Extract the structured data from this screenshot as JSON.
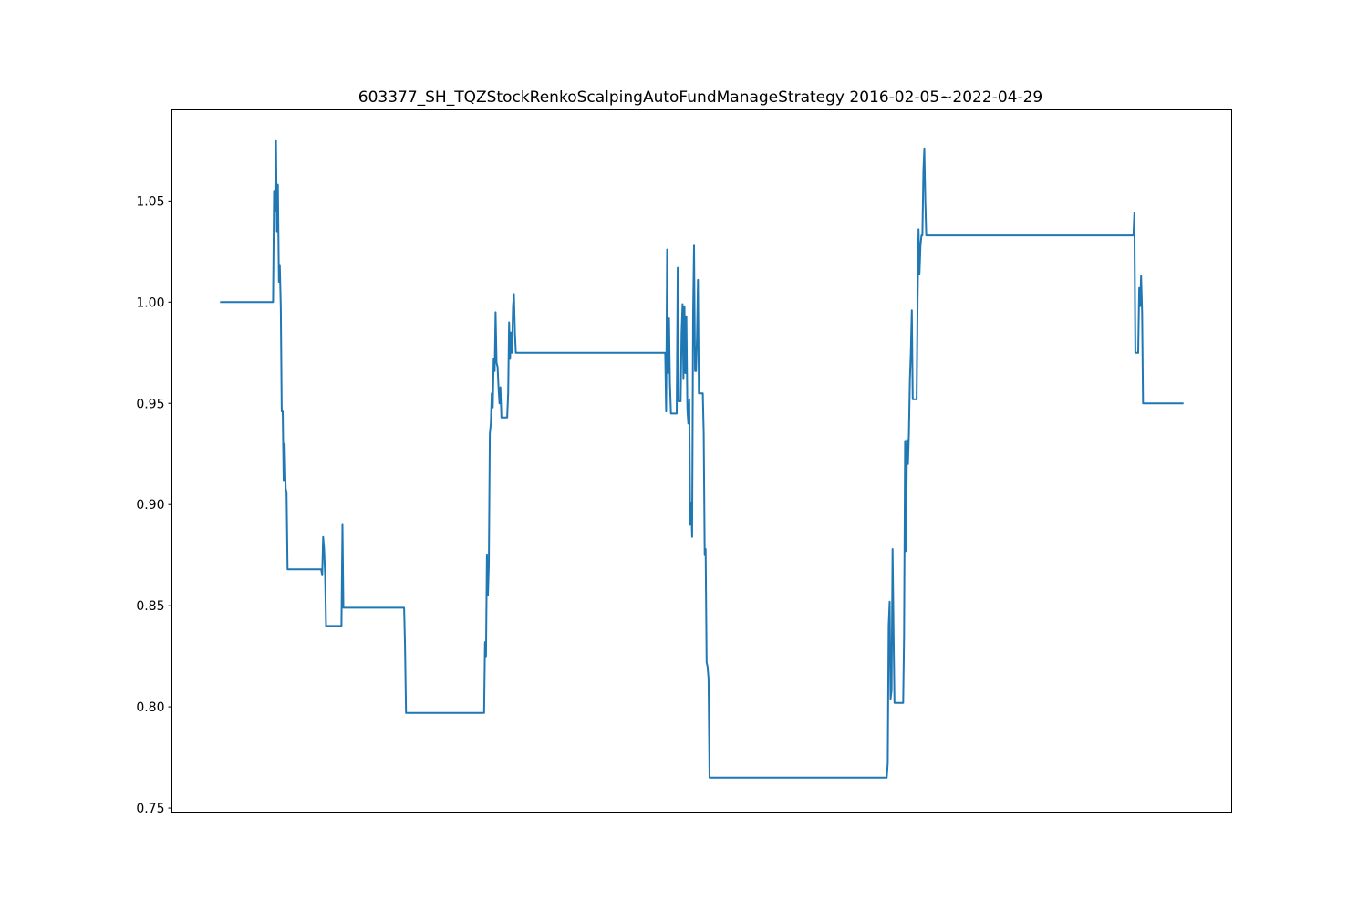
{
  "chart_data": {
    "type": "line",
    "title": "603377_SH_TQZStockRenkoScalpingAutoFundManageStrategy   2016-02-05~2022-04-29",
    "xlabel": "",
    "ylabel": "",
    "xlim": [
      -0.05,
      1.05
    ],
    "ylim": [
      0.748,
      1.095
    ],
    "yticks": [
      {
        "value": 0.75,
        "label": "0.75"
      },
      {
        "value": 0.8,
        "label": "0.80"
      },
      {
        "value": 0.85,
        "label": "0.85"
      },
      {
        "value": 0.9,
        "label": "0.90"
      },
      {
        "value": 0.95,
        "label": "0.95"
      },
      {
        "value": 1.0,
        "label": "1.00"
      },
      {
        "value": 1.05,
        "label": "1.05"
      }
    ],
    "grid": false,
    "line_color": "#1f77b4",
    "series": [
      {
        "values": [
          [
            0.0,
            1.0
          ],
          [
            0.055,
            1.0
          ],
          [
            0.056,
            1.055
          ],
          [
            0.057,
            1.045
          ],
          [
            0.058,
            1.08
          ],
          [
            0.059,
            1.035
          ],
          [
            0.06,
            1.058
          ],
          [
            0.061,
            1.01
          ],
          [
            0.062,
            1.018
          ],
          [
            0.063,
            0.997
          ],
          [
            0.064,
            0.946
          ],
          [
            0.065,
            0.946
          ],
          [
            0.066,
            0.912
          ],
          [
            0.067,
            0.93
          ],
          [
            0.068,
            0.908
          ],
          [
            0.069,
            0.906
          ],
          [
            0.07,
            0.868
          ],
          [
            0.105,
            0.868
          ],
          [
            0.106,
            0.865
          ],
          [
            0.107,
            0.884
          ],
          [
            0.108,
            0.878
          ],
          [
            0.109,
            0.865
          ],
          [
            0.11,
            0.84
          ],
          [
            0.126,
            0.84
          ],
          [
            0.127,
            0.89
          ],
          [
            0.128,
            0.849
          ],
          [
            0.191,
            0.849
          ],
          [
            0.192,
            0.83
          ],
          [
            0.193,
            0.797
          ],
          [
            0.274,
            0.797
          ],
          [
            0.275,
            0.832
          ],
          [
            0.276,
            0.825
          ],
          [
            0.277,
            0.875
          ],
          [
            0.278,
            0.855
          ],
          [
            0.279,
            0.87
          ],
          [
            0.28,
            0.935
          ],
          [
            0.281,
            0.94
          ],
          [
            0.282,
            0.955
          ],
          [
            0.283,
            0.948
          ],
          [
            0.284,
            0.972
          ],
          [
            0.285,
            0.966
          ],
          [
            0.286,
            0.995
          ],
          [
            0.287,
            0.97
          ],
          [
            0.288,
            0.968
          ],
          [
            0.289,
            0.958
          ],
          [
            0.29,
            0.95
          ],
          [
            0.291,
            0.958
          ],
          [
            0.292,
            0.943
          ],
          [
            0.298,
            0.943
          ],
          [
            0.299,
            0.955
          ],
          [
            0.3,
            0.99
          ],
          [
            0.301,
            0.972
          ],
          [
            0.302,
            0.985
          ],
          [
            0.303,
            0.975
          ],
          [
            0.304,
            0.998
          ],
          [
            0.305,
            1.004
          ],
          [
            0.306,
            0.985
          ],
          [
            0.307,
            0.975
          ],
          [
            0.462,
            0.975
          ],
          [
            0.463,
            0.946
          ],
          [
            0.464,
            1.026
          ],
          [
            0.465,
            0.965
          ],
          [
            0.466,
            0.992
          ],
          [
            0.467,
            0.96
          ],
          [
            0.468,
            0.945
          ],
          [
            0.474,
            0.945
          ],
          [
            0.475,
            1.017
          ],
          [
            0.476,
            0.951
          ],
          [
            0.477,
            0.951
          ],
          [
            0.478,
            0.951
          ],
          [
            0.479,
            0.985
          ],
          [
            0.48,
            0.999
          ],
          [
            0.481,
            0.962
          ],
          [
            0.482,
            0.998
          ],
          [
            0.483,
            0.965
          ],
          [
            0.484,
            0.993
          ],
          [
            0.485,
            0.947
          ],
          [
            0.486,
            0.94
          ],
          [
            0.487,
            0.952
          ],
          [
            0.488,
            0.89
          ],
          [
            0.489,
            0.901
          ],
          [
            0.49,
            0.884
          ],
          [
            0.491,
            0.995
          ],
          [
            0.492,
            1.028
          ],
          [
            0.493,
            0.966
          ],
          [
            0.494,
            0.966
          ],
          [
            0.495,
            0.982
          ],
          [
            0.496,
            1.011
          ],
          [
            0.497,
            0.955
          ],
          [
            0.501,
            0.955
          ],
          [
            0.502,
            0.935
          ],
          [
            0.503,
            0.875
          ],
          [
            0.504,
            0.878
          ],
          [
            0.505,
            0.822
          ],
          [
            0.506,
            0.82
          ],
          [
            0.507,
            0.814
          ],
          [
            0.508,
            0.765
          ],
          [
            0.692,
            0.765
          ],
          [
            0.693,
            0.772
          ],
          [
            0.694,
            0.84
          ],
          [
            0.695,
            0.852
          ],
          [
            0.696,
            0.804
          ],
          [
            0.697,
            0.808
          ],
          [
            0.698,
            0.878
          ],
          [
            0.699,
            0.84
          ],
          [
            0.7,
            0.802
          ],
          [
            0.709,
            0.802
          ],
          [
            0.71,
            0.835
          ],
          [
            0.711,
            0.931
          ],
          [
            0.712,
            0.877
          ],
          [
            0.713,
            0.932
          ],
          [
            0.714,
            0.92
          ],
          [
            0.715,
            0.935
          ],
          [
            0.716,
            0.962
          ],
          [
            0.717,
            0.975
          ],
          [
            0.718,
            0.996
          ],
          [
            0.719,
            0.952
          ],
          [
            0.723,
            0.952
          ],
          [
            0.724,
            1.0
          ],
          [
            0.725,
            1.036
          ],
          [
            0.726,
            1.014
          ],
          [
            0.727,
            1.028
          ],
          [
            0.728,
            1.033
          ],
          [
            0.729,
            1.033
          ],
          [
            0.73,
            1.065
          ],
          [
            0.731,
            1.076
          ],
          [
            0.732,
            1.05
          ],
          [
            0.733,
            1.033
          ],
          [
            0.948,
            1.033
          ],
          [
            0.949,
            1.044
          ],
          [
            0.95,
            0.975
          ],
          [
            0.953,
            0.975
          ],
          [
            0.954,
            1.007
          ],
          [
            0.955,
            0.998
          ],
          [
            0.956,
            1.013
          ],
          [
            0.957,
            0.995
          ],
          [
            0.958,
            0.95
          ],
          [
            1.0,
            0.95
          ]
        ]
      }
    ]
  }
}
